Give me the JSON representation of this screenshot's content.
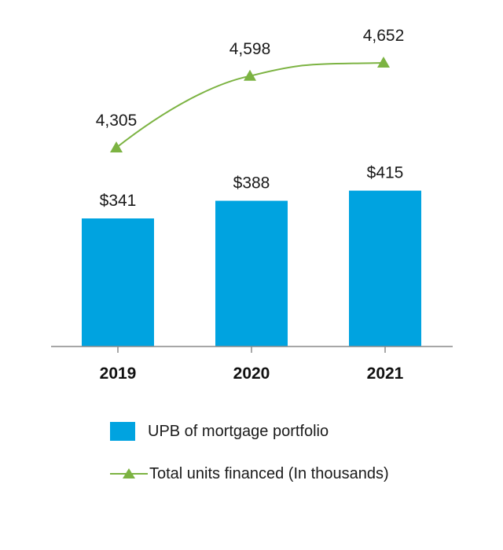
{
  "colors": {
    "bar": "#00a3e0",
    "line": "#7cb342",
    "axis": "#8a8a8a"
  },
  "chart_data": {
    "type": "bar",
    "categories": [
      "2019",
      "2020",
      "2021"
    ],
    "series": [
      {
        "name": "UPB of mortgage portfolio",
        "type": "bar",
        "values": [
          341,
          388,
          415
        ],
        "labels": [
          "$341",
          "$388",
          "$415"
        ]
      },
      {
        "name": "Total units financed (In thousands)",
        "type": "line",
        "marker": "triangle",
        "values": [
          4305,
          4598,
          4652
        ],
        "labels": [
          "4,305",
          "4,598",
          "4,652"
        ]
      }
    ],
    "title": "",
    "xlabel": "",
    "ylabel": "",
    "legend_position": "bottom"
  },
  "legend": {
    "bar_label": "UPB of mortgage portfolio",
    "line_label": "Total units financed (In thousands)"
  }
}
